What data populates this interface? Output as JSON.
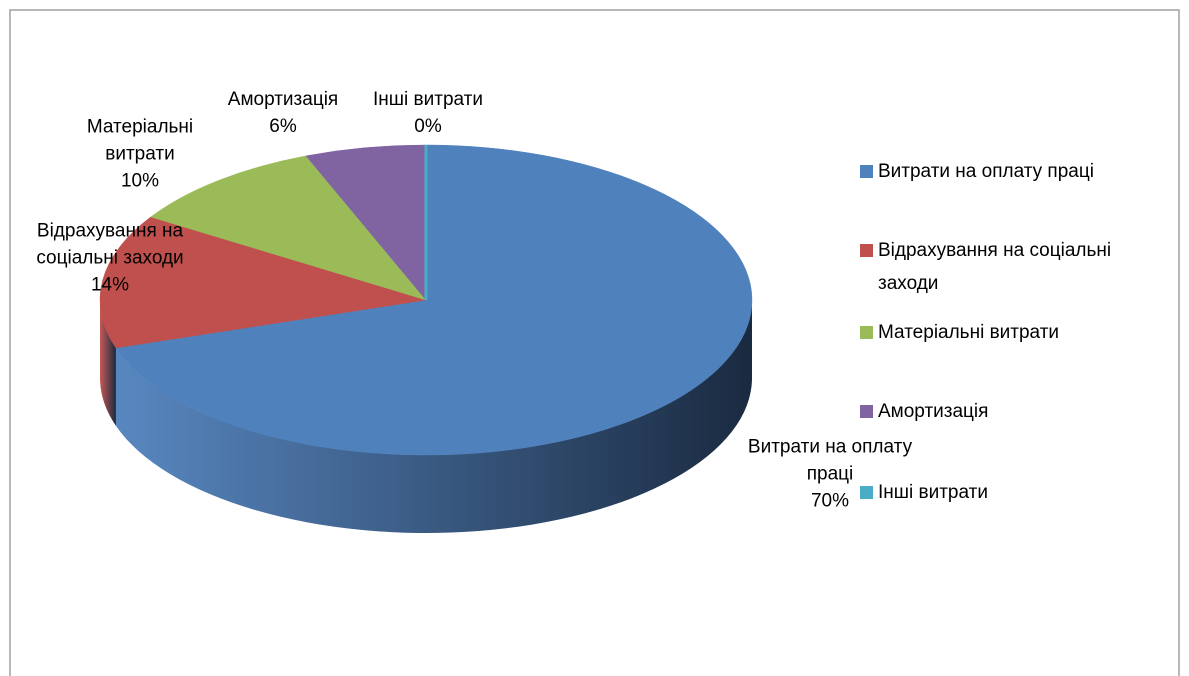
{
  "chart_data": {
    "type": "pie",
    "categories": [
      "Витрати на оплату праці",
      "Відрахування на соціальні заходи",
      "Матеріальні витрати",
      "Амортизація",
      "Інші витрати"
    ],
    "values": [
      70,
      14,
      10,
      6,
      0
    ],
    "value_labels": [
      "70%",
      "14%",
      "10%",
      "6%",
      "0%"
    ],
    "colors": [
      "#4f81bd",
      "#c0504d",
      "#9bbb59",
      "#8064a2",
      "#4bacc6"
    ],
    "legend": "right"
  }
}
